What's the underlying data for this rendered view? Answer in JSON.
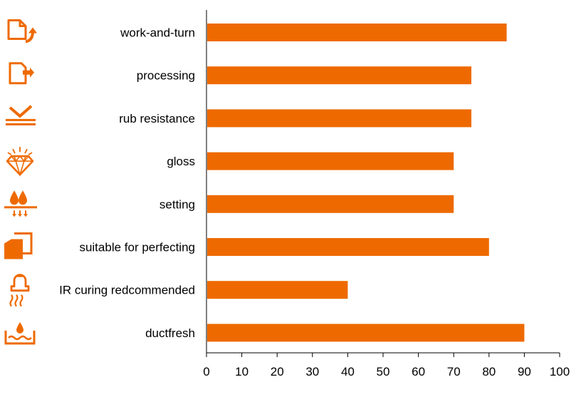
{
  "chart_data": {
    "type": "bar",
    "orientation": "horizontal",
    "categories": [
      "work-and-turn",
      "processing",
      "rub resistance",
      "gloss",
      "setting",
      "suitable for perfecting",
      "IR curing redcommended",
      "ductfresh"
    ],
    "values": [
      85,
      75,
      75,
      70,
      70,
      80,
      40,
      90
    ],
    "icons": [
      "document-flip-icon",
      "document-out-icon",
      "rub-resistance-icon",
      "diamond-icon",
      "drops-setting-icon",
      "perfecting-sheets-icon",
      "ir-lamp-icon",
      "ductfresh-icon"
    ],
    "x_ticks": [
      "0",
      "10",
      "20",
      "30",
      "40",
      "50",
      "60",
      "70",
      "80",
      "90",
      "100"
    ],
    "xlim": [
      0,
      100
    ],
    "title": "",
    "xlabel": "",
    "ylabel": "",
    "grid": false,
    "legend": "none",
    "colors": {
      "bar": "#EE6A00",
      "icon": "#EE6A00",
      "axis": "#000000",
      "text": "#000000"
    }
  }
}
